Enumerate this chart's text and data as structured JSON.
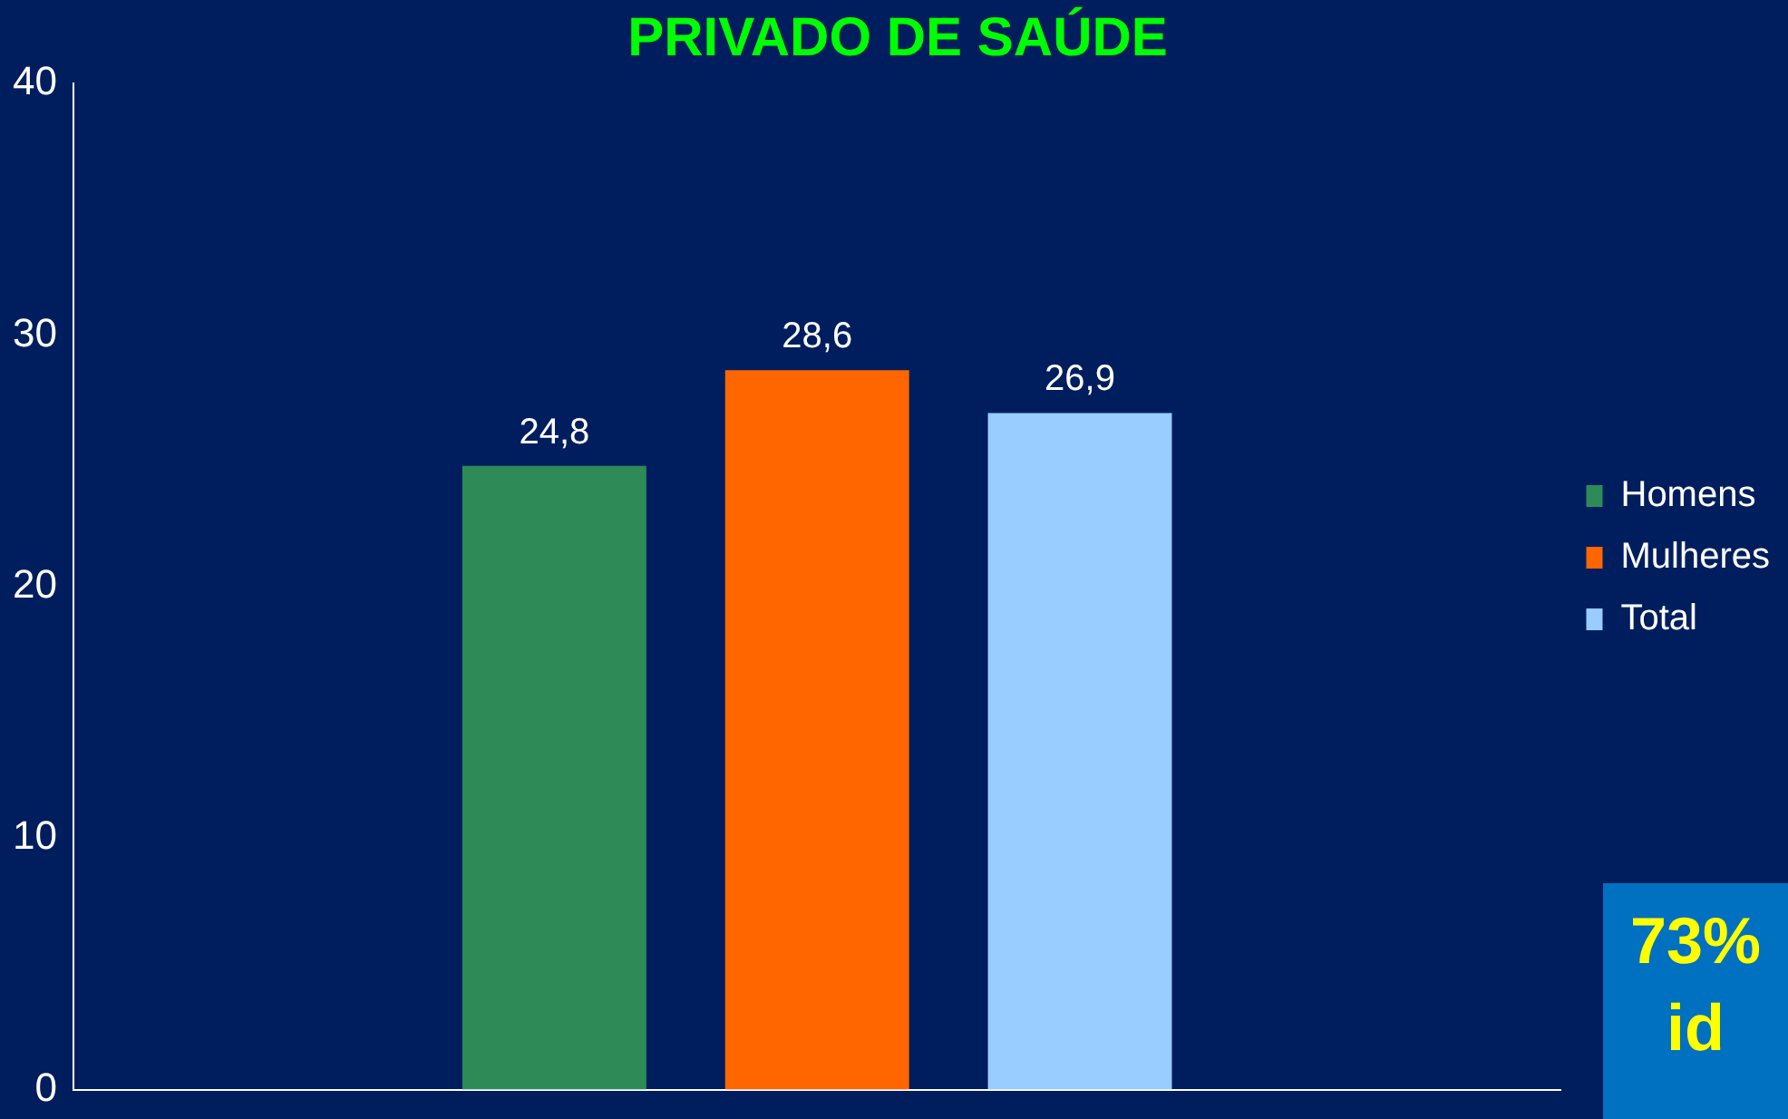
{
  "chart_data": {
    "type": "bar",
    "title": "PRIVADO DE SAÚDE",
    "categories": [
      null
    ],
    "series": [
      {
        "name": "Homens",
        "color": "#2e8b57",
        "values": [
          24.8
        ],
        "value_labels": [
          "24,8"
        ]
      },
      {
        "name": "Mulheres",
        "color": "#ff6600",
        "values": [
          28.6
        ],
        "value_labels": [
          "28,6"
        ]
      },
      {
        "name": "Total",
        "color": "#99ccff",
        "values": [
          26.9
        ],
        "value_labels": [
          "26,9"
        ]
      }
    ],
    "ylim": [
      0,
      40
    ],
    "yticks": [
      0,
      10,
      20,
      30,
      40
    ],
    "legend": "right",
    "grid": false,
    "tick_labels": "y",
    "annotations": [
      "73%",
      "id"
    ]
  }
}
